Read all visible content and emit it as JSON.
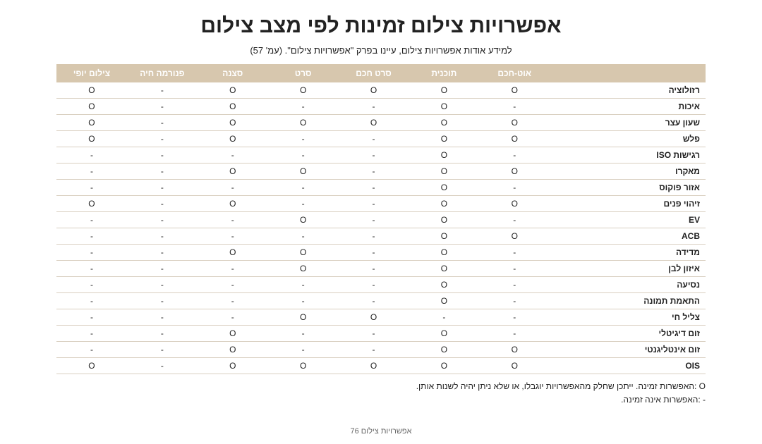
{
  "title": "אפשרויות צילום זמינות לפי מצב צילום",
  "subtitle": "למידע אודות אפשרויות צילום, עיינו בפרק \"אפשרויות צילום\". (עמ' 57)",
  "columns": [
    "אוט-חכם",
    "תוכנית",
    "סרט חכם",
    "סרט",
    "סצנה",
    "פנורמה חיה",
    "צילום יופי"
  ],
  "column_widths_pct": [
    24,
    10.857,
    10.857,
    10.857,
    10.857,
    10.857,
    10.857,
    10.857
  ],
  "header_bg": "#d7c7ae",
  "header_fg": "#ffffff",
  "row_border_color": "#d9cfc0",
  "text_color": "#222222",
  "mark_yes": "O",
  "mark_no": "-",
  "rows": [
    {
      "label": "רזולוציה",
      "cells": [
        "O",
        "O",
        "O",
        "O",
        "O",
        "-",
        "O"
      ]
    },
    {
      "label": "איכות",
      "cells": [
        "-",
        "O",
        "-",
        "-",
        "O",
        "-",
        "O"
      ]
    },
    {
      "label": "שעון עצר",
      "cells": [
        "O",
        "O",
        "O",
        "O",
        "O",
        "-",
        "O"
      ]
    },
    {
      "label": "פלש",
      "cells": [
        "O",
        "O",
        "-",
        "-",
        "O",
        "-",
        "O"
      ]
    },
    {
      "label": "רגישות ISO",
      "cells": [
        "-",
        "O",
        "-",
        "-",
        "-",
        "-",
        "-"
      ]
    },
    {
      "label": "מאקרו",
      "cells": [
        "O",
        "O",
        "-",
        "O",
        "O",
        "-",
        "-"
      ]
    },
    {
      "label": "אזור פוקוס",
      "cells": [
        "-",
        "O",
        "-",
        "-",
        "-",
        "-",
        "-"
      ]
    },
    {
      "label": "זיהוי פנים",
      "cells": [
        "O",
        "O",
        "-",
        "-",
        "O",
        "-",
        "O"
      ]
    },
    {
      "label": "EV",
      "cells": [
        "-",
        "O",
        "-",
        "O",
        "-",
        "-",
        "-"
      ]
    },
    {
      "label": "ACB",
      "cells": [
        "O",
        "O",
        "-",
        "-",
        "-",
        "-",
        "-"
      ]
    },
    {
      "label": "מדידה",
      "cells": [
        "-",
        "O",
        "-",
        "O",
        "O",
        "-",
        "-"
      ]
    },
    {
      "label": "איזון לבן",
      "cells": [
        "-",
        "O",
        "-",
        "O",
        "-",
        "-",
        "-"
      ]
    },
    {
      "label": "נסיעה",
      "cells": [
        "-",
        "O",
        "-",
        "-",
        "-",
        "-",
        "-"
      ]
    },
    {
      "label": "התאמת תמונה",
      "cells": [
        "-",
        "O",
        "-",
        "-",
        "-",
        "-",
        "-"
      ]
    },
    {
      "label": "צליל חי",
      "cells": [
        "-",
        "-",
        "O",
        "O",
        "-",
        "-",
        "-"
      ]
    },
    {
      "label": "זום דיגיטלי",
      "cells": [
        "-",
        "O",
        "-",
        "-",
        "O",
        "-",
        "-"
      ]
    },
    {
      "label": "זום אינטליגנטי",
      "cells": [
        "O",
        "O",
        "-",
        "-",
        "O",
        "-",
        "-"
      ]
    },
    {
      "label": "OIS",
      "cells": [
        "O",
        "O",
        "O",
        "O",
        "O",
        "-",
        "O"
      ]
    }
  ],
  "legend": [
    "O :האפשרות זמינה. ייתכן שחלק מהאפשרויות יוגבלו, או שלא ניתן יהיה לשנות אותן.",
    "- :האפשרות אינה זמינה."
  ],
  "footer": "אפשרויות צילום  76"
}
